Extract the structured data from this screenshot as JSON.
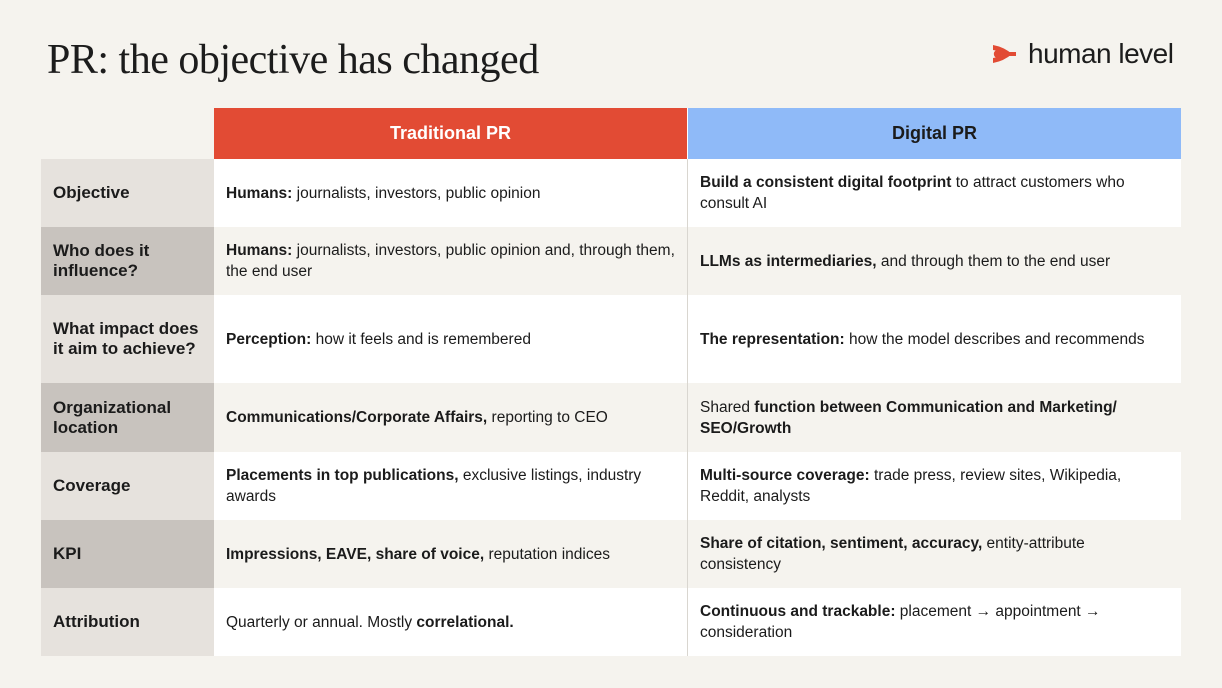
{
  "title": "PR: the objective has changed",
  "logo": {
    "text": "human level",
    "icon": "arrow-logo-icon",
    "icon_color": "#e24b34"
  },
  "colors": {
    "traditional_header": "#e24b34",
    "digital_header": "#8fbaf8",
    "background": "#f5f3ee"
  },
  "headers": {
    "traditional": "Traditional PR",
    "digital": "Digital PR"
  },
  "rows": [
    {
      "label": "Objective",
      "traditional": [
        {
          "b": "Humans:"
        },
        {
          "t": " journalists, investors, public opinion"
        }
      ],
      "digital": [
        {
          "b": "Build a consistent digital footprint"
        },
        {
          "t": " to attract customers who consult AI"
        }
      ]
    },
    {
      "label": "Who does it influence?",
      "traditional": [
        {
          "b": "Humans:"
        },
        {
          "t": " journalists, investors, public opinion and, through them, the end user"
        }
      ],
      "digital": [
        {
          "b": "LLMs as intermediaries,"
        },
        {
          "t": " and through them to the end user"
        }
      ]
    },
    {
      "label": "What impact does it aim to achieve?",
      "traditional": [
        {
          "b": "Perception:"
        },
        {
          "t": " how it feels and is remembered"
        }
      ],
      "digital": [
        {
          "b": "The representation:"
        },
        {
          "t": " how the model describes and recommends"
        }
      ]
    },
    {
      "label": "Organizational location",
      "traditional": [
        {
          "b": "Communications/Corporate Affairs,"
        },
        {
          "t": " reporting to CEO"
        }
      ],
      "digital": [
        {
          "t": "Shared "
        },
        {
          "b": "function between Communication and Marketing/ SEO/Growth"
        }
      ]
    },
    {
      "label": "Coverage",
      "traditional": [
        {
          "b": "Placements in top publications,"
        },
        {
          "t": " exclusive listings, industry awards"
        }
      ],
      "digital": [
        {
          "b": "Multi-source coverage:"
        },
        {
          "t": " trade press, review sites, Wikipedia, Reddit, analysts"
        }
      ]
    },
    {
      "label": "KPI",
      "traditional": [
        {
          "b": "Impressions, EAVE, share of voice,"
        },
        {
          "t": " reputation indices"
        }
      ],
      "digital": [
        {
          "b": "Share of citation, sentiment, accuracy,"
        },
        {
          "t": " entity-attribute consistency"
        }
      ]
    },
    {
      "label": "Attribution",
      "traditional": [
        {
          "t": "Quarterly or annual. Mostly "
        },
        {
          "b": "correlational."
        }
      ],
      "digital": [
        {
          "b": "Continuous and trackable:"
        },
        {
          "t": " placement → appointment → consideration"
        }
      ]
    }
  ]
}
